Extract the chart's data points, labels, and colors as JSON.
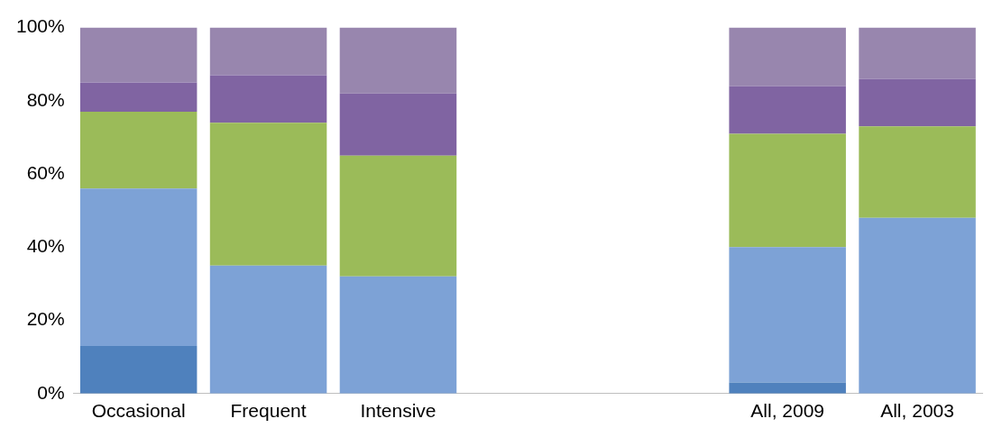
{
  "chart_data": {
    "type": "bar",
    "stacked": true,
    "categories": [
      "Occasional",
      "Frequent",
      "Intensive",
      null,
      null,
      "All, 2009",
      "All, 2003"
    ],
    "series": [
      {
        "color": "#4f81bd",
        "values": [
          13,
          0,
          0,
          null,
          null,
          3,
          0
        ]
      },
      {
        "color": "#7da2d6",
        "values": [
          43,
          35,
          32,
          null,
          null,
          37,
          48
        ]
      },
      {
        "color": "#9bbb59",
        "values": [
          21,
          39,
          33,
          null,
          null,
          31,
          25
        ]
      },
      {
        "color": "#8064a2",
        "values": [
          8,
          13,
          17,
          null,
          null,
          13,
          13
        ]
      },
      {
        "color": "#9886ae",
        "values": [
          15,
          13,
          18,
          null,
          null,
          16,
          14
        ]
      }
    ],
    "ylim": [
      0,
      100
    ],
    "yticks": [
      {
        "value": 0,
        "label": "0%"
      },
      {
        "value": 20,
        "label": "20%"
      },
      {
        "value": 40,
        "label": "40%"
      },
      {
        "value": 60,
        "label": "60%"
      },
      {
        "value": 80,
        "label": "80%"
      },
      {
        "value": 100,
        "label": "100%"
      }
    ],
    "grid": false,
    "legend": false
  }
}
